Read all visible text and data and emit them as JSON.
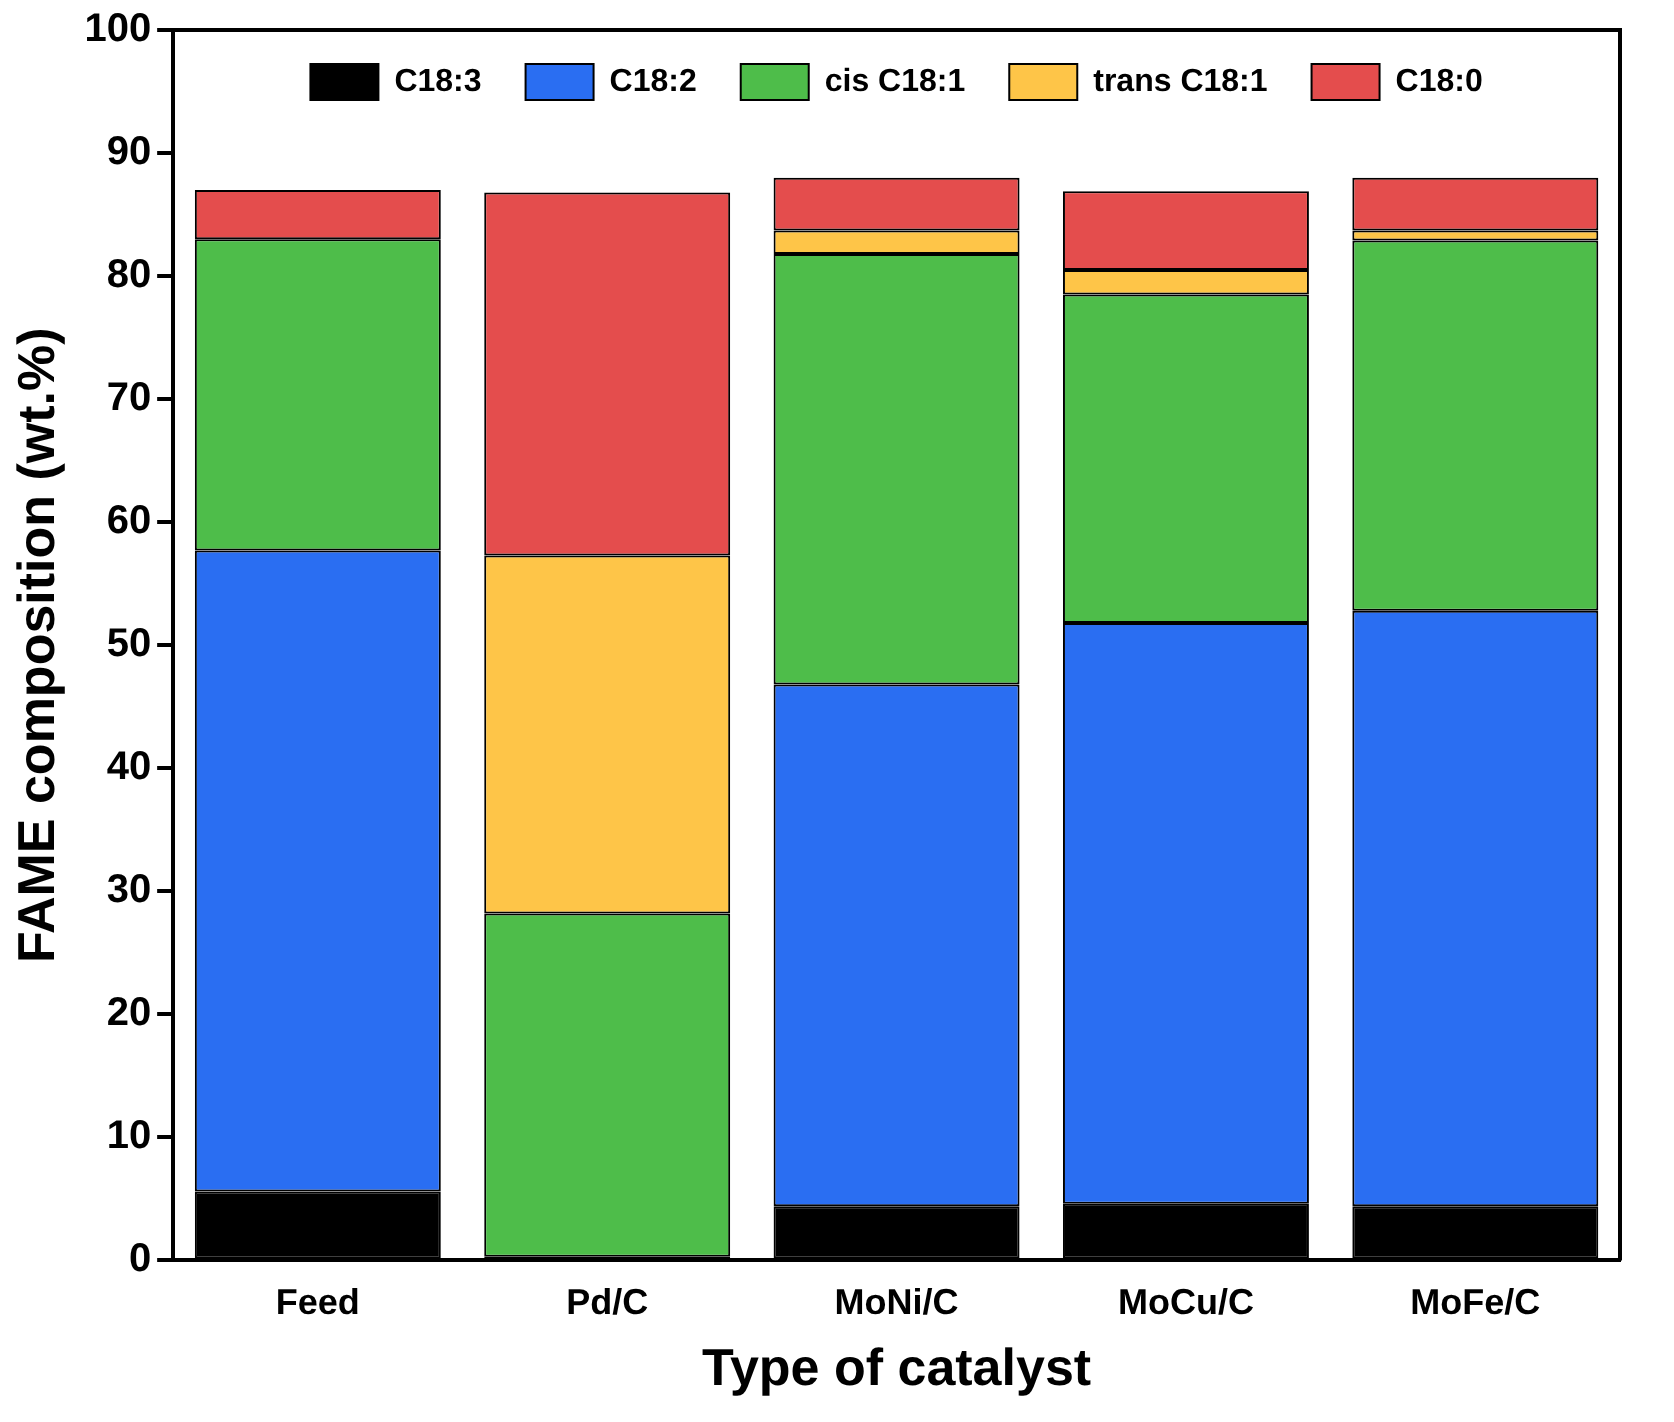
{
  "chart_data": {
    "type": "bar",
    "stacked": true,
    "xlabel": "Type of catalyst",
    "ylabel": "FAME composition (wt.%)",
    "categories": [
      "Feed",
      "Pd/C",
      "MoNi/C",
      "MoCu/C",
      "MoFe/C"
    ],
    "ylim": [
      0,
      100
    ],
    "yticks": [
      0,
      10,
      20,
      30,
      40,
      50,
      60,
      70,
      80,
      90,
      100
    ],
    "grid": false,
    "legend": "top",
    "series": [
      {
        "name": "C18:3",
        "color": "#000000",
        "values": [
          5.6,
          0.3,
          4.4,
          4.6,
          4.4
        ]
      },
      {
        "name": "C18:2",
        "color": "#2a6ef2",
        "values": [
          52.1,
          0,
          42.4,
          47.2,
          48.4
        ]
      },
      {
        "name": "cis C18:1",
        "color": "#4ebd4a",
        "values": [
          25.3,
          27.9,
          35.0,
          26.7,
          30.1
        ]
      },
      {
        "name": "trans C18:1",
        "color": "#fec548",
        "values": [
          0,
          29.1,
          1.9,
          2.0,
          0.8
        ]
      },
      {
        "name": "C18:0",
        "color": "#e44d4d",
        "values": [
          4.0,
          29.5,
          4.3,
          6.4,
          4.3
        ]
      }
    ]
  }
}
